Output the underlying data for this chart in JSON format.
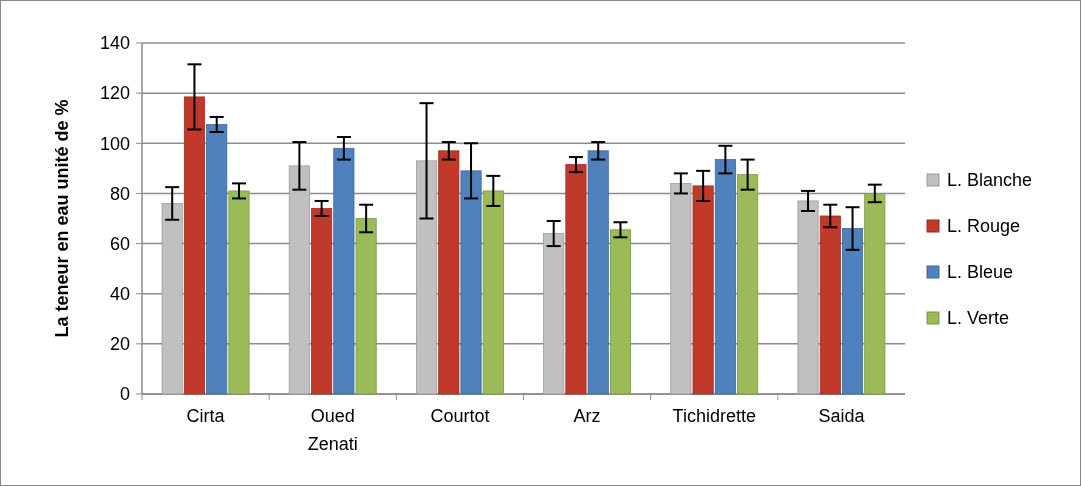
{
  "chart_data": {
    "type": "bar",
    "ylabel": "La teneur en eau unité de %",
    "categories": [
      "Cirta",
      "Oued Zenati",
      "Courtot",
      "Arz",
      "Tichidrette",
      "Saida"
    ],
    "series": [
      {
        "name": "L. Blanche",
        "color": "#c0c0c0",
        "values": [
          76,
          91,
          93,
          64,
          84,
          77
        ],
        "errors": [
          6.5,
          9.5,
          23,
          5,
          4,
          4
        ]
      },
      {
        "name": "L. Rouge",
        "color": "#c0392b",
        "values": [
          118.5,
          74,
          97,
          91.5,
          83,
          71
        ],
        "errors": [
          13,
          3,
          3.5,
          3,
          6,
          4.5
        ]
      },
      {
        "name": "L. Bleue",
        "color": "#4f81bd",
        "values": [
          107.5,
          98,
          89,
          97,
          93.5,
          66
        ],
        "errors": [
          3,
          4.5,
          11,
          3.5,
          5.5,
          8.5
        ]
      },
      {
        "name": "L. Verte",
        "color": "#9bbb59",
        "values": [
          81,
          70,
          81,
          65.5,
          87.5,
          80
        ],
        "errors": [
          3,
          5.5,
          6,
          3,
          6,
          3.5
        ]
      }
    ],
    "ylim": [
      0,
      140
    ],
    "yticks": [
      0,
      20,
      40,
      60,
      80,
      100,
      120,
      140
    ],
    "grid": "y",
    "legend": "right"
  }
}
